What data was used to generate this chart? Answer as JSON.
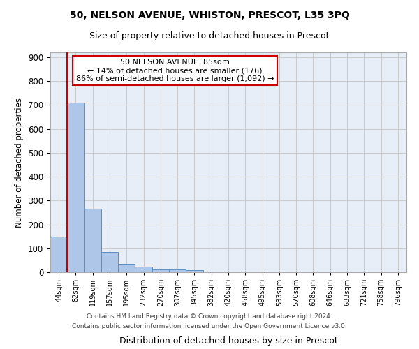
{
  "title1": "50, NELSON AVENUE, WHISTON, PRESCOT, L35 3PQ",
  "title2": "Size of property relative to detached houses in Prescot",
  "xlabel": "Distribution of detached houses by size in Prescot",
  "ylabel": "Number of detached properties",
  "bin_labels": [
    "44sqm",
    "82sqm",
    "119sqm",
    "157sqm",
    "195sqm",
    "232sqm",
    "270sqm",
    "307sqm",
    "345sqm",
    "382sqm",
    "420sqm",
    "458sqm",
    "495sqm",
    "533sqm",
    "570sqm",
    "608sqm",
    "646sqm",
    "683sqm",
    "721sqm",
    "758sqm",
    "796sqm"
  ],
  "bar_values": [
    148,
    710,
    265,
    85,
    35,
    22,
    13,
    13,
    10,
    0,
    0,
    0,
    0,
    0,
    0,
    0,
    0,
    0,
    0,
    0,
    0
  ],
  "bar_color": "#aec6e8",
  "bar_edge_color": "#5b8ec4",
  "bar_width": 1.0,
  "vline_color": "#cc0000",
  "annotation_text": "50 NELSON AVENUE: 85sqm\n← 14% of detached houses are smaller (176)\n86% of semi-detached houses are larger (1,092) →",
  "annotation_box_color": "#ffffff",
  "annotation_box_edge": "#cc0000",
  "ylim": [
    0,
    920
  ],
  "yticks": [
    0,
    100,
    200,
    300,
    400,
    500,
    600,
    700,
    800,
    900
  ],
  "grid_color": "#cccccc",
  "bg_color": "#e8eef8",
  "footer1": "Contains HM Land Registry data © Crown copyright and database right 2024.",
  "footer2": "Contains public sector information licensed under the Open Government Licence v3.0."
}
